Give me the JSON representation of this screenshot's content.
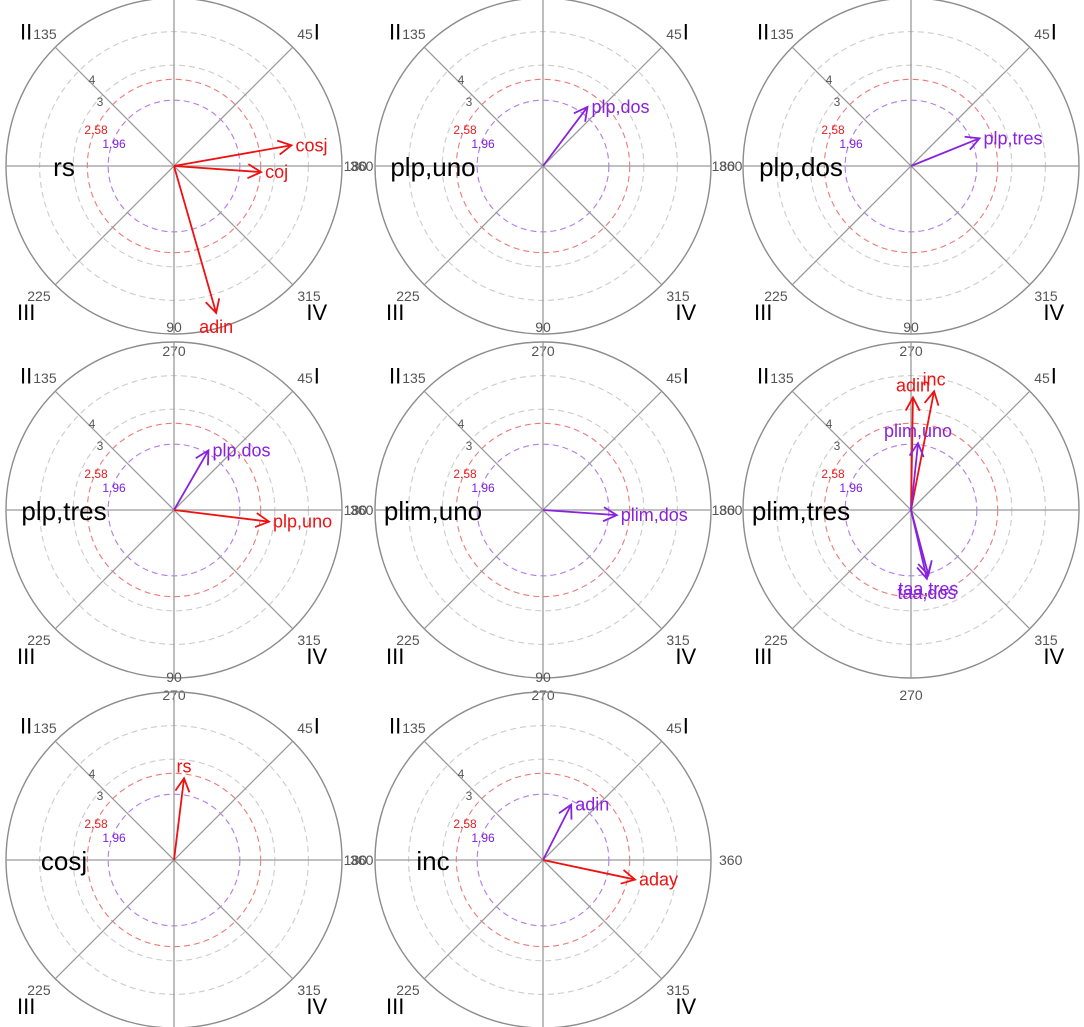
{
  "chart_data": {
    "type": "polar-vector",
    "radial_unit": "z-score",
    "radial_max": 5,
    "angle_labels": [
      "90",
      "45",
      "360",
      "315",
      "270",
      "225",
      "180",
      "135"
    ],
    "quadrant_labels": [
      "I",
      "II",
      "III",
      "IV"
    ],
    "rings": [
      {
        "value": 4,
        "label": "4",
        "color": "#aaaaaa"
      },
      {
        "value": 3,
        "label": "3",
        "color": "#aaaaaa"
      },
      {
        "value": 2.58,
        "label": "2.58",
        "color": "#e02020"
      },
      {
        "value": 1.96,
        "label": "1.96",
        "color": "#8020e0"
      }
    ],
    "colors": {
      "significant": "#ee1111",
      "marginal": "#8822dd",
      "focal": "#000000"
    },
    "panels": [
      {
        "focal": "rs",
        "vectors": [
          {
            "label": "cosj",
            "angle": 10,
            "length": 3.55,
            "significance": "significant"
          },
          {
            "label": "coj",
            "angle": -4,
            "length": 2.6,
            "significance": "significant"
          },
          {
            "label": "adin",
            "angle": -74,
            "length": 4.55,
            "significance": "significant"
          }
        ]
      },
      {
        "focal": "plp,uno",
        "vectors": [
          {
            "label": "plp,dos",
            "angle": 53,
            "length": 2.2,
            "significance": "marginal"
          }
        ]
      },
      {
        "focal": "plp,dos",
        "vectors": [
          {
            "label": "plp,tres",
            "angle": 22,
            "length": 2.2,
            "significance": "marginal"
          }
        ]
      },
      {
        "focal": "plp,tres",
        "vectors": [
          {
            "label": "plp,dos",
            "angle": 60,
            "length": 2.05,
            "significance": "marginal"
          },
          {
            "label": "plp,uno",
            "angle": -7,
            "length": 2.85,
            "significance": "significant"
          }
        ]
      },
      {
        "focal": "plim,uno",
        "vectors": [
          {
            "label": "plim,dos",
            "angle": -4,
            "length": 2.2,
            "significance": "marginal"
          }
        ]
      },
      {
        "focal": "plim,tres",
        "vectors": [
          {
            "label": "adin",
            "angle": 89,
            "length": 3.35,
            "significance": "significant"
          },
          {
            "label": "inc",
            "angle": 79,
            "length": 3.6,
            "significance": "significant"
          },
          {
            "label": "plim,uno",
            "angle": 84,
            "length": 2.0,
            "significance": "marginal"
          },
          {
            "label": "taa,tres",
            "angle": -75,
            "length": 2.0,
            "significance": "marginal"
          },
          {
            "label": "taa,dos",
            "angle": -77,
            "length": 2.1,
            "significance": "marginal"
          }
        ]
      },
      {
        "focal": "cosj",
        "vectors": [
          {
            "label": "rs",
            "angle": 83,
            "length": 2.45,
            "significance": "significant"
          }
        ]
      },
      {
        "focal": "inc",
        "vectors": [
          {
            "label": "adin",
            "angle": 63,
            "length": 1.85,
            "significance": "marginal"
          },
          {
            "label": "aday",
            "angle": -12,
            "length": 2.8,
            "significance": "significant"
          }
        ]
      }
    ]
  }
}
